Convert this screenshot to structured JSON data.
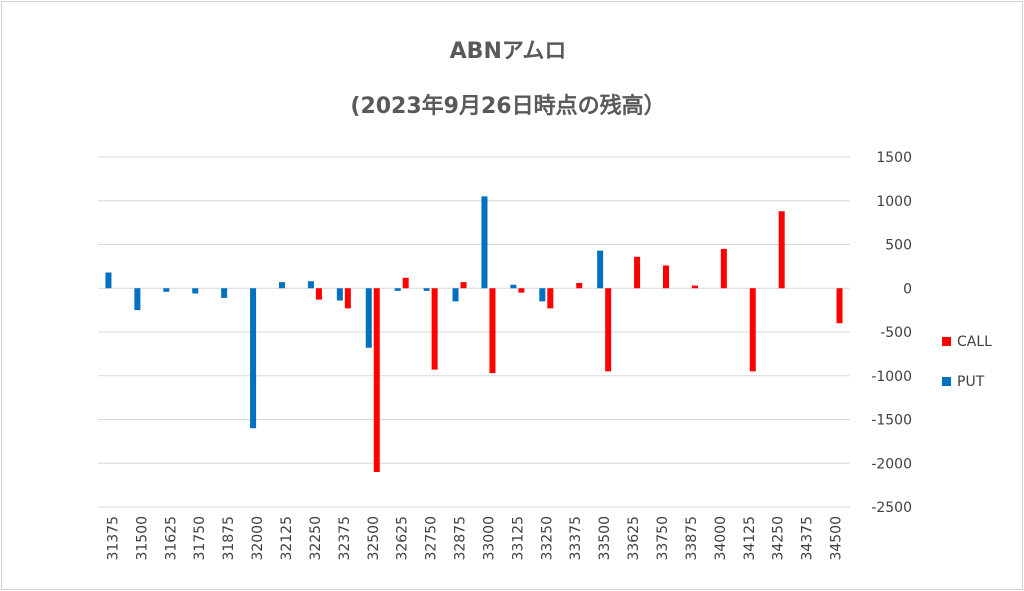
{
  "chart_data": {
    "type": "bar",
    "title": "ABNアムロ",
    "subtitle": "(2023年9月26日時点の残高）",
    "ylim": [
      -2500,
      1500
    ],
    "yticks": [
      1500,
      1000,
      500,
      0,
      -500,
      -1000,
      -1500,
      -2000,
      -2500
    ],
    "y_axis_position": "right",
    "grid": true,
    "legend_position": "right",
    "categories": [
      "31375",
      "31500",
      "31625",
      "31750",
      "31875",
      "32000",
      "32125",
      "32250",
      "32375",
      "32500",
      "32625",
      "32750",
      "32875",
      "33000",
      "33125",
      "33250",
      "33375",
      "33500",
      "33625",
      "33750",
      "33875",
      "34000",
      "34125",
      "34250",
      "34375",
      "34500"
    ],
    "series": [
      {
        "name": "CALL",
        "color": "#ff0000",
        "values": [
          0,
          0,
          0,
          0,
          0,
          0,
          0,
          -130,
          -230,
          -2100,
          120,
          -930,
          70,
          -970,
          -50,
          -230,
          60,
          -950,
          360,
          260,
          30,
          450,
          -950,
          880,
          0,
          -400
        ]
      },
      {
        "name": "PUT",
        "color": "#0070c0",
        "values": [
          180,
          -250,
          -40,
          -60,
          -110,
          -1600,
          70,
          80,
          -140,
          -680,
          -30,
          -30,
          -150,
          1050,
          40,
          -150,
          0,
          430,
          0,
          0,
          0,
          0,
          0,
          0,
          0,
          0
        ]
      }
    ]
  }
}
